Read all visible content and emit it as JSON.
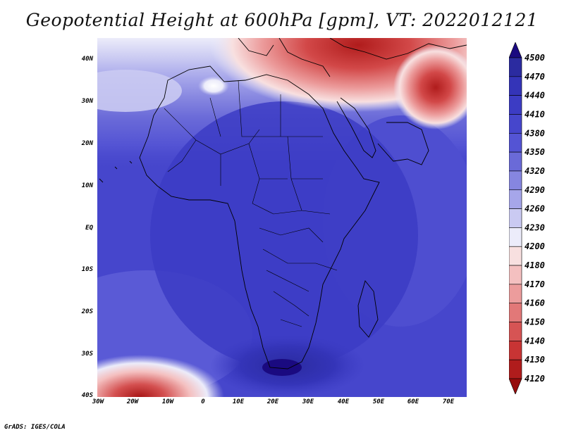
{
  "title": "Geopotential Height at 600hPa [gpm], VT: 2022012121",
  "credit": "GrADS: IGES/COLA",
  "map": {
    "type": "filled-contour-map",
    "variable": "Geopotential Height",
    "level": "600hPa",
    "units": "gpm",
    "valid_time": "2022012121",
    "region": "Africa",
    "lon_range": [
      -30,
      75
    ],
    "lat_range": [
      -40,
      45
    ],
    "lon_ticks": [
      "30W",
      "20W",
      "10W",
      "0",
      "10E",
      "20E",
      "30E",
      "40E",
      "50E",
      "60E",
      "70E"
    ],
    "lat_ticks": [
      "40N",
      "30N",
      "20N",
      "10N",
      "EQ",
      "10S",
      "20S",
      "30S",
      "40S"
    ]
  },
  "colorbar": {
    "labels": [
      "4500",
      "4470",
      "4440",
      "4410",
      "4380",
      "4350",
      "4320",
      "4290",
      "4260",
      "4230",
      "4200",
      "4180",
      "4170",
      "4160",
      "4150",
      "4140",
      "4130",
      "4120"
    ],
    "colors": [
      "#1a0a80",
      "#2b2ba0",
      "#3434b8",
      "#3c3cc4",
      "#4646cc",
      "#5454d4",
      "#6a6ad8",
      "#8686e0",
      "#a6a6ea",
      "#cacaf2",
      "#ececfa",
      "#f8e0e0",
      "#f4c0c0",
      "#ec9c9c",
      "#e27878",
      "#d65454",
      "#c83434",
      "#b01c1c",
      "#960c0c"
    ]
  }
}
